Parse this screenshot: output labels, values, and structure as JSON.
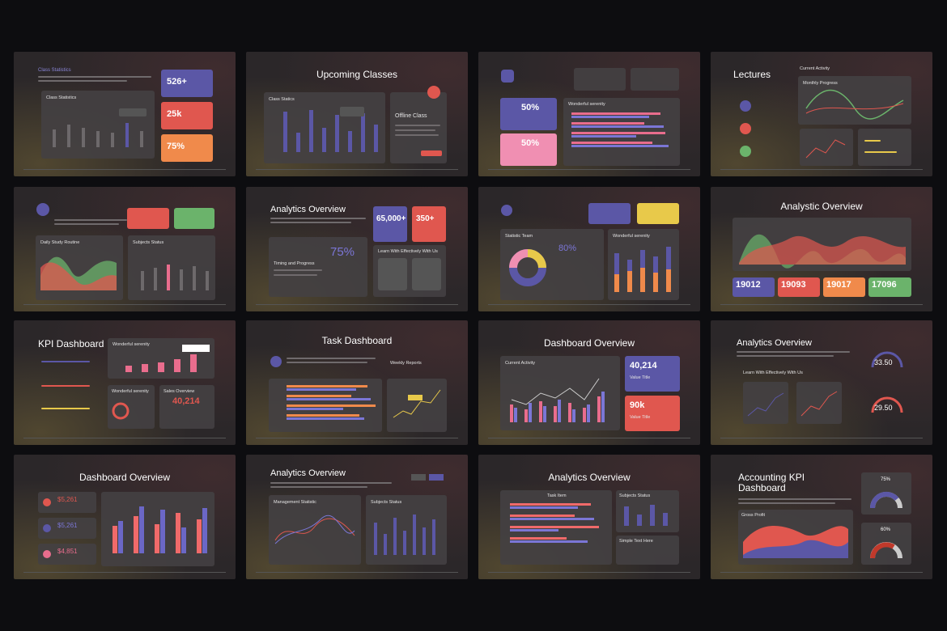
{
  "slides": [
    {
      "title": "Class Statistics",
      "labels": [
        "Class Statistics"
      ],
      "stats": [
        "526+",
        "25k",
        "75%"
      ]
    },
    {
      "title": "Upcoming Classes",
      "labels": [
        "Class Statics",
        "Offline Class"
      ]
    },
    {
      "labels": [
        "Wonderful serenity"
      ],
      "stats": [
        "50%",
        "50%"
      ]
    },
    {
      "title": "Lectures",
      "labels": [
        "Current Activity",
        "Monthly Progress"
      ]
    },
    {
      "labels": [
        "Daily Study Routine",
        "Subjects Status"
      ]
    },
    {
      "title": "Analytics Overview",
      "labels": [
        "Timing and Progress",
        "Learn With Effectively With Us"
      ],
      "stats": [
        "65,000+",
        "350+",
        "75%"
      ]
    },
    {
      "labels": [
        "Statistic Team",
        "Wonderful serenity"
      ],
      "stats": [
        "80%"
      ]
    },
    {
      "title": "Analystic Overview",
      "stats": [
        "19012",
        "19093",
        "19017",
        "17096"
      ]
    },
    {
      "title": "KPI Dashboard",
      "labels": [
        "Wonderful serenity",
        "Wonderful serenity",
        "Sales Overview"
      ],
      "stats": [
        "40,214"
      ]
    },
    {
      "title": "Task Dashboard",
      "labels": [
        "Weekly Reports"
      ]
    },
    {
      "title": "Dashboard Overview",
      "labels": [
        "Current Activity",
        "Value Title",
        "Value Title"
      ],
      "stats": [
        "40,214",
        "90k"
      ]
    },
    {
      "title": "Analytics Overview",
      "labels": [
        "Learn With Effectively With Us"
      ],
      "stats": [
        "33.50",
        "29.50"
      ]
    },
    {
      "title": "Dashboard Overview",
      "stats": [
        "$5,261",
        "$5,261",
        "$4,851"
      ]
    },
    {
      "title": "Analytics Overview",
      "labels": [
        "Management Statistic",
        "Subjects Status"
      ]
    },
    {
      "title": "Analytics Overview",
      "labels": [
        "Task Item",
        "Subjects Status",
        "Simple Text Here"
      ]
    },
    {
      "title": "Accounting KPI Dashboard",
      "labels": [
        "Gross Profit"
      ],
      "stats": [
        "75%",
        "60%"
      ]
    }
  ]
}
